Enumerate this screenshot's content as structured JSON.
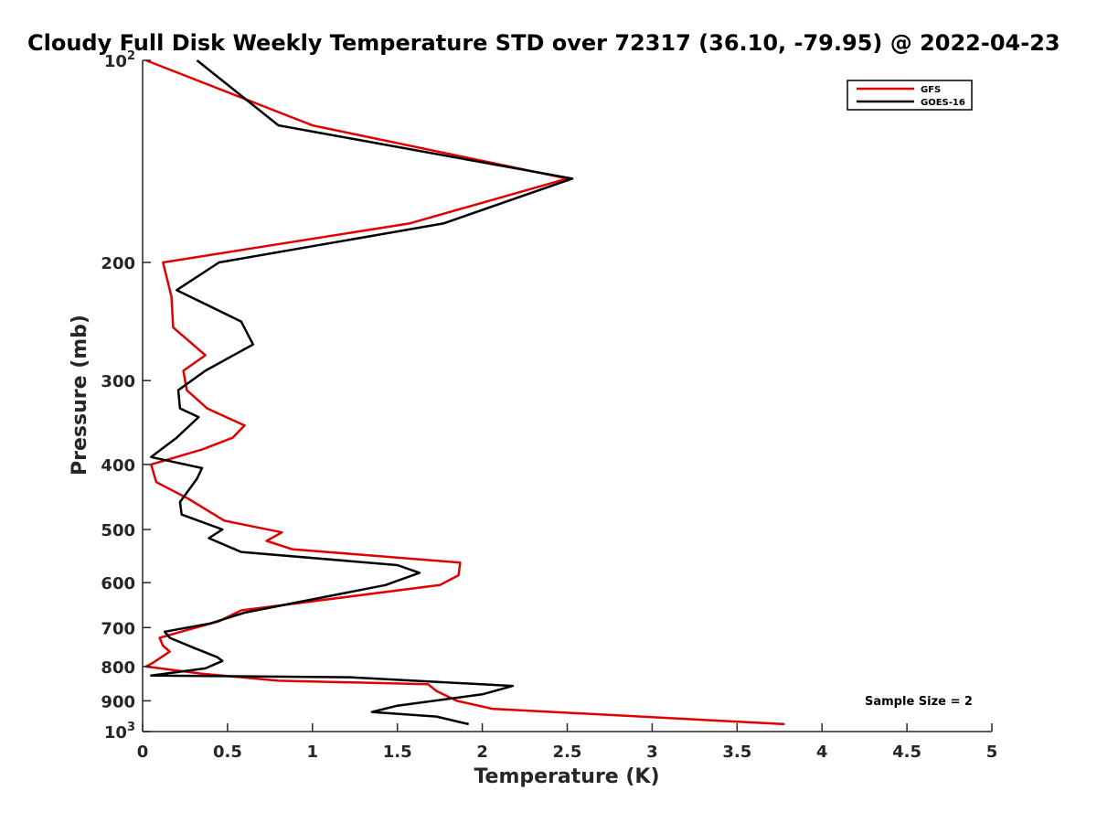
{
  "chart_data": {
    "type": "line",
    "title": "Cloudy Full Disk Weekly Temperature STD over 72317 (36.10, -79.95) @ 2022-04-23",
    "xlabel": "Temperature (K)",
    "ylabel": "Pressure (mb)",
    "xlim": [
      0,
      5
    ],
    "ylim": [
      1000,
      100
    ],
    "y_scale": "log",
    "y_reversed": true,
    "x_ticks": [
      "0",
      "0.5",
      "1",
      "1.5",
      "2",
      "2.5",
      "3",
      "3.5",
      "4",
      "4.5",
      "5"
    ],
    "y_ticks": [
      {
        "value": 100,
        "base": "10",
        "exp": "2"
      },
      {
        "value": 200,
        "label": "200"
      },
      {
        "value": 300,
        "label": "300"
      },
      {
        "value": 400,
        "label": "400"
      },
      {
        "value": 500,
        "label": "500"
      },
      {
        "value": 600,
        "label": "600"
      },
      {
        "value": 700,
        "label": "700"
      },
      {
        "value": 800,
        "label": "800"
      },
      {
        "value": 900,
        "label": "900"
      },
      {
        "value": 1000,
        "base": "10",
        "exp": "3"
      }
    ],
    "grid": false,
    "legend_position": "top-right",
    "annotation": "Sample Size = 2",
    "series": [
      {
        "name": "GFS",
        "color": "#e00000",
        "points": [
          [
            0.02,
            100
          ],
          [
            1.0,
            125
          ],
          [
            2.5,
            150
          ],
          [
            1.57,
            175
          ],
          [
            0.12,
            200
          ],
          [
            0.17,
            225
          ],
          [
            0.18,
            250
          ],
          [
            0.37,
            275
          ],
          [
            0.24,
            290
          ],
          [
            0.26,
            310
          ],
          [
            0.38,
            330
          ],
          [
            0.6,
            350
          ],
          [
            0.53,
            365
          ],
          [
            0.35,
            380
          ],
          [
            0.05,
            400
          ],
          [
            0.08,
            425
          ],
          [
            0.27,
            450
          ],
          [
            0.48,
            485
          ],
          [
            0.82,
            505
          ],
          [
            0.73,
            520
          ],
          [
            0.88,
            535
          ],
          [
            1.87,
            560
          ],
          [
            1.86,
            585
          ],
          [
            1.75,
            605
          ],
          [
            0.58,
            660
          ],
          [
            0.45,
            685
          ],
          [
            0.27,
            705
          ],
          [
            0.1,
            725
          ],
          [
            0.12,
            745
          ],
          [
            0.16,
            760
          ],
          [
            0.06,
            790
          ],
          [
            0.02,
            800
          ],
          [
            0.35,
            820
          ],
          [
            0.8,
            840
          ],
          [
            1.68,
            850
          ],
          [
            1.73,
            870
          ],
          [
            1.85,
            900
          ],
          [
            2.06,
            925
          ],
          [
            3.78,
            975
          ]
        ]
      },
      {
        "name": "GOES-16",
        "color": "#000000",
        "points": [
          [
            0.32,
            100
          ],
          [
            0.8,
            125
          ],
          [
            2.53,
            150
          ],
          [
            1.77,
            175
          ],
          [
            0.45,
            200
          ],
          [
            0.2,
            220
          ],
          [
            0.58,
            245
          ],
          [
            0.65,
            265
          ],
          [
            0.37,
            290
          ],
          [
            0.21,
            310
          ],
          [
            0.22,
            330
          ],
          [
            0.33,
            340
          ],
          [
            0.2,
            365
          ],
          [
            0.05,
            390
          ],
          [
            0.35,
            405
          ],
          [
            0.32,
            420
          ],
          [
            0.22,
            455
          ],
          [
            0.23,
            475
          ],
          [
            0.47,
            500
          ],
          [
            0.39,
            515
          ],
          [
            0.58,
            540
          ],
          [
            1.5,
            565
          ],
          [
            1.63,
            580
          ],
          [
            1.43,
            605
          ],
          [
            0.6,
            665
          ],
          [
            0.4,
            690
          ],
          [
            0.13,
            710
          ],
          [
            0.16,
            725
          ],
          [
            0.3,
            750
          ],
          [
            0.44,
            775
          ],
          [
            0.47,
            785
          ],
          [
            0.37,
            805
          ],
          [
            0.05,
            825
          ],
          [
            1.22,
            830
          ],
          [
            2.18,
            855
          ],
          [
            2.0,
            880
          ],
          [
            1.5,
            915
          ],
          [
            1.35,
            935
          ],
          [
            1.73,
            950
          ],
          [
            1.92,
            975
          ]
        ]
      }
    ]
  }
}
